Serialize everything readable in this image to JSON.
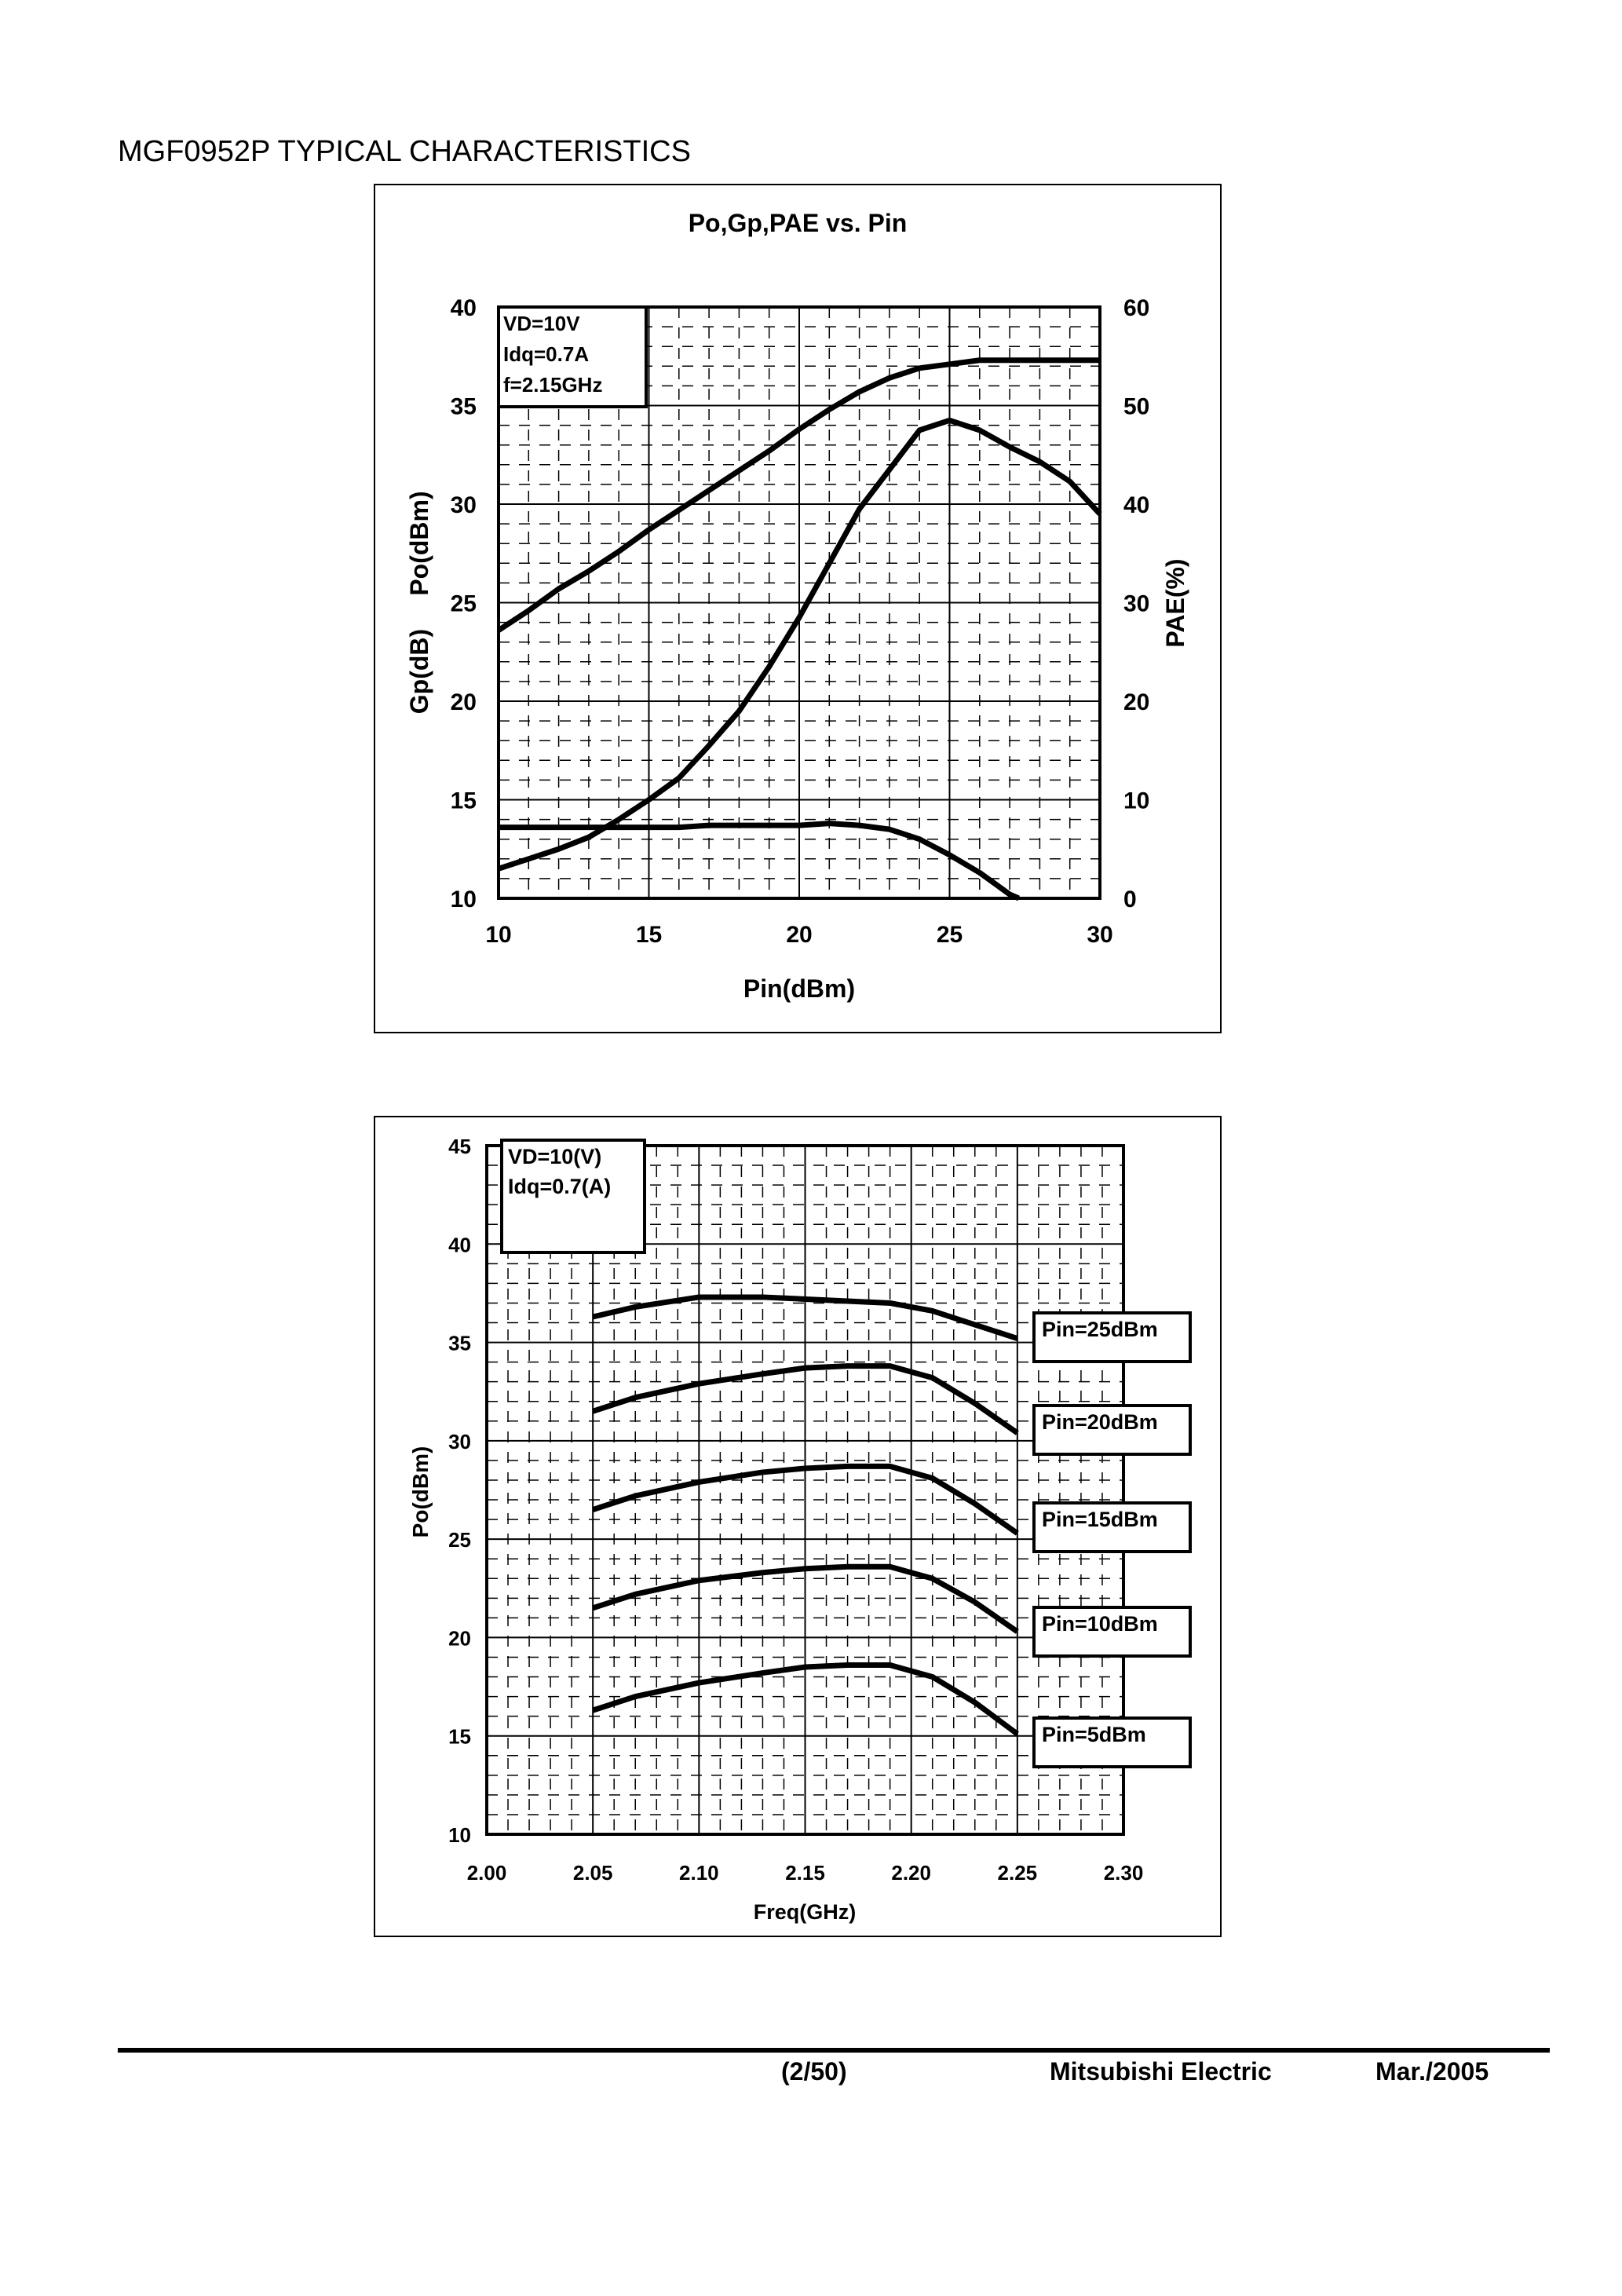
{
  "document": {
    "title": "MGF0952P TYPICAL CHARACTERISTICS",
    "footer": {
      "page": "(2/50)",
      "company": "Mitsubishi Electric",
      "date": "Mar./2005"
    }
  },
  "chart_data": [
    {
      "type": "line",
      "title": "Po,Gp,PAE vs. Pin",
      "xlabel": "Pin(dBm)",
      "ylabel_left": [
        "Gp(dB)",
        "Po(dBm)"
      ],
      "ylabel_right": "PAE(%)",
      "xlim": [
        10,
        30
      ],
      "ylim_left": [
        10,
        40
      ],
      "ylim_right": [
        0,
        60
      ],
      "x_ticks": [
        "10",
        "15",
        "20",
        "25",
        "30"
      ],
      "y_ticks_left": [
        "10",
        "15",
        "20",
        "25",
        "30",
        "35",
        "40"
      ],
      "y_ticks_right": [
        "0",
        "10",
        "20",
        "30",
        "40",
        "50",
        "60"
      ],
      "grid": true,
      "annotation": [
        "VD=10V",
        "Idq=0.7A",
        "f=2.15GHz"
      ],
      "series": [
        {
          "axis": "left",
          "x": [
            10,
            11,
            12,
            13,
            14,
            15,
            16,
            17,
            18,
            19,
            20,
            21,
            22,
            23,
            24,
            25,
            26,
            27,
            28,
            29,
            30
          ],
          "y": [
            23.6,
            24.6,
            25.7,
            26.6,
            27.6,
            28.7,
            29.7,
            30.7,
            31.7,
            32.7,
            33.8,
            34.8,
            35.7,
            36.4,
            36.9,
            37.1,
            37.3,
            37.3,
            37.3,
            37.3,
            37.3
          ]
        },
        {
          "axis": "left",
          "x": [
            10,
            16,
            17,
            20,
            21,
            22,
            23,
            24,
            25,
            26,
            27,
            27.3
          ],
          "y": [
            13.6,
            13.6,
            13.7,
            13.7,
            13.8,
            13.7,
            13.5,
            13.0,
            12.2,
            11.3,
            10.2,
            10.0
          ]
        },
        {
          "axis": "right",
          "x": [
            10,
            11,
            12,
            13,
            14,
            15,
            16,
            17,
            18,
            19,
            20,
            21,
            22,
            23,
            24,
            25,
            26,
            27,
            28,
            29,
            30
          ],
          "y": [
            3,
            4,
            5,
            6.2,
            8,
            10,
            12.2,
            15.5,
            19,
            23.5,
            28.5,
            34,
            39.5,
            43.5,
            47.5,
            48.5,
            47.5,
            45.8,
            44.3,
            42.3,
            39
          ]
        }
      ]
    },
    {
      "type": "line",
      "title": "",
      "xlabel": "Freq(GHz)",
      "ylabel": "Po(dBm)",
      "xlim": [
        2.0,
        2.3
      ],
      "ylim": [
        10,
        45
      ],
      "x_ticks": [
        "2.00",
        "2.05",
        "2.10",
        "2.15",
        "2.20",
        "2.25",
        "2.30"
      ],
      "y_ticks": [
        "10",
        "15",
        "20",
        "25",
        "30",
        "35",
        "40",
        "45"
      ],
      "grid": true,
      "annotation": [
        "VD=10(V)",
        "Idq=0.7(A)"
      ],
      "x": [
        2.05,
        2.07,
        2.1,
        2.13,
        2.15,
        2.17,
        2.19,
        2.21,
        2.23,
        2.25
      ],
      "series": [
        {
          "name": "Pin=25dBm",
          "values": [
            36.3,
            36.8,
            37.3,
            37.3,
            37.2,
            37.1,
            37.0,
            36.6,
            35.9,
            35.2
          ]
        },
        {
          "name": "Pin=20dBm",
          "values": [
            31.5,
            32.2,
            32.9,
            33.4,
            33.7,
            33.8,
            33.8,
            33.2,
            31.9,
            30.4
          ]
        },
        {
          "name": "Pin=15dBm",
          "values": [
            26.5,
            27.2,
            27.9,
            28.4,
            28.6,
            28.7,
            28.7,
            28.1,
            26.8,
            25.3
          ]
        },
        {
          "name": "Pin=10dBm",
          "values": [
            21.5,
            22.2,
            22.9,
            23.3,
            23.5,
            23.6,
            23.6,
            23.0,
            21.8,
            20.3
          ]
        },
        {
          "name": "Pin=5dBm",
          "values": [
            16.3,
            17.0,
            17.7,
            18.2,
            18.5,
            18.6,
            18.6,
            18.0,
            16.7,
            15.1
          ]
        }
      ]
    }
  ]
}
